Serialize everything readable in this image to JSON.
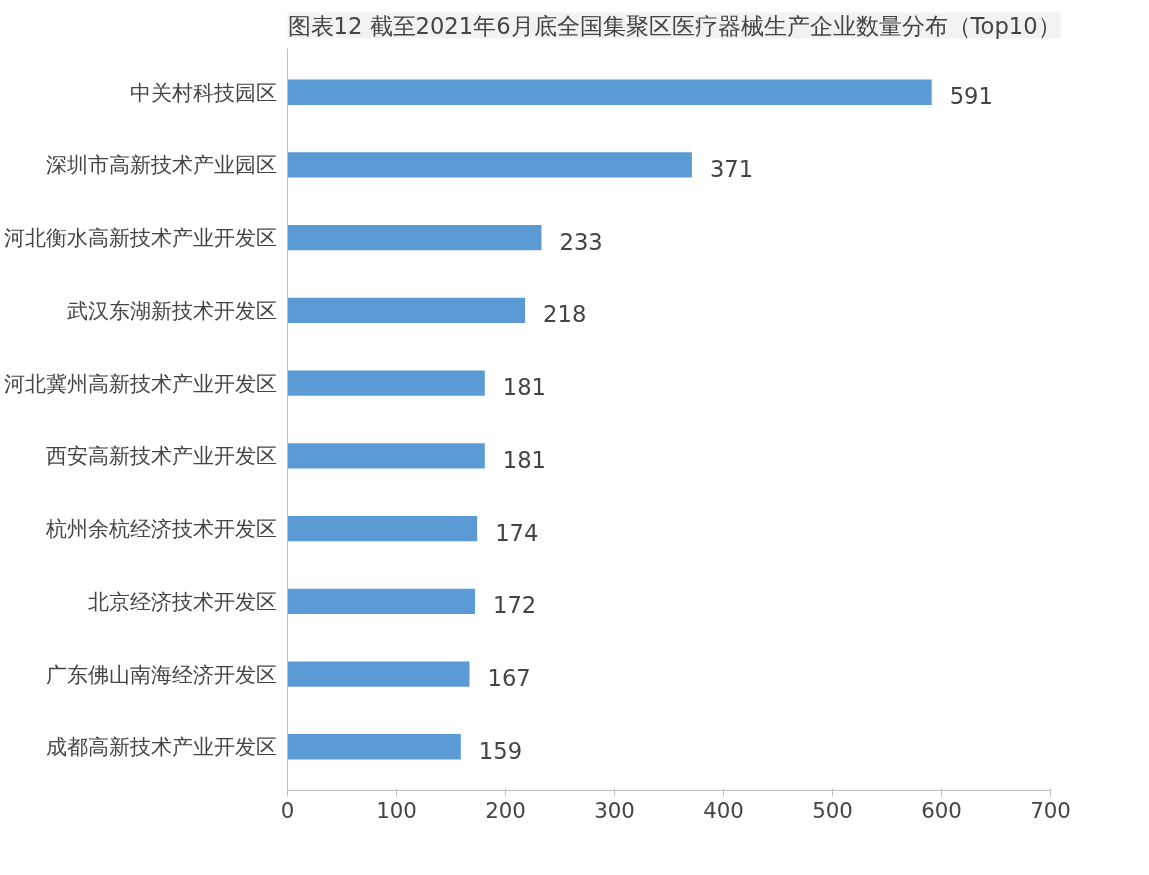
{
  "chart_data": {
    "type": "bar",
    "orientation": "horizontal",
    "title": "图表12 截至2021年6月底全国集聚区医疗器械生产企业数量分布（Top10）",
    "categories": [
      "中关村科技园区",
      "深圳市高新技术产业园区",
      "河北衡水高新技术产业开发区",
      "武汉东湖新技术开发区",
      "河北冀州高新技术产业开发区",
      "西安高新技术产业开发区",
      "杭州余杭经济技术开发区",
      "北京经济技术开发区",
      "广东佛山南海经济开发区",
      "成都高新技术产业开发区"
    ],
    "values": [
      591,
      371,
      233,
      218,
      181,
      181,
      174,
      172,
      167,
      159
    ],
    "color": "#5b9bd5",
    "xlim": [
      0,
      700
    ],
    "xticks": [
      0,
      100,
      200,
      300,
      400,
      500,
      600,
      700
    ],
    "data_labels": true,
    "grid": false
  }
}
